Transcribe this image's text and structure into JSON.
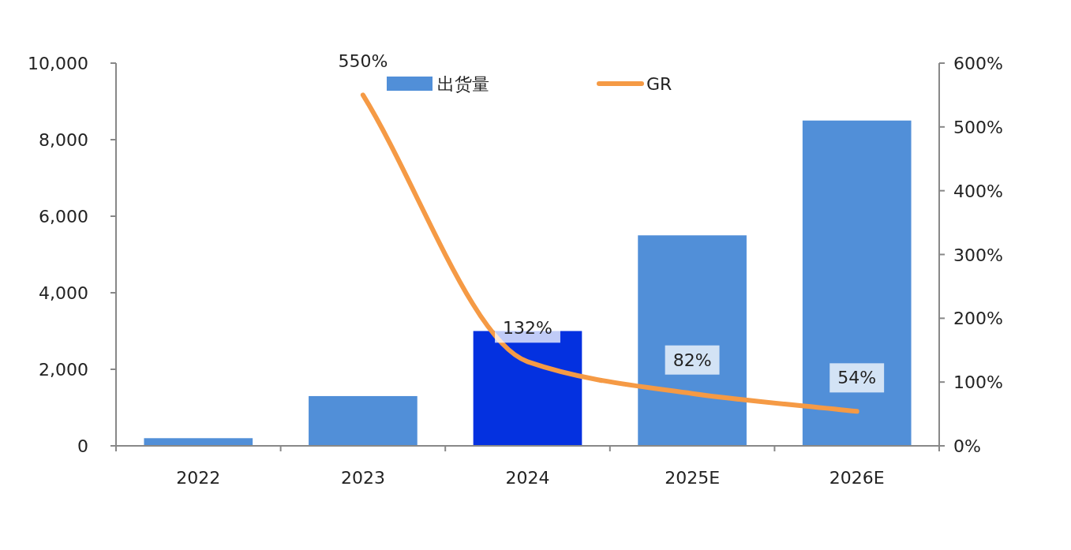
{
  "chart_data": {
    "type": "bar",
    "categories": [
      "2022",
      "2023",
      "2024",
      "2025E",
      "2026E"
    ],
    "series": [
      {
        "name": "出货量",
        "color": "#518fd8",
        "colors": [
          "#518fd8",
          "#518fd8",
          "#0431e0",
          "#518fd8",
          "#518fd8"
        ],
        "values": [
          200,
          1300,
          3000,
          5500,
          8500
        ]
      },
      {
        "name": "GR",
        "type": "line",
        "axis": "y2",
        "color": "#f59a45",
        "values": [
          null,
          550,
          132,
          82,
          54
        ],
        "value_labels": [
          null,
          "550%",
          "132%",
          "82%",
          "54%"
        ]
      }
    ],
    "ylim": [
      0,
      10000
    ],
    "yticks": [
      0,
      {
        "value": 2000,
        "label": "2,000"
      },
      {
        "value": 4000,
        "label": "4,000"
      },
      {
        "value": 6000,
        "label": "6,000"
      },
      {
        "value": 8000,
        "label": "8,000"
      },
      {
        "value": 10000,
        "label": "10,000"
      }
    ],
    "y2lim": [
      0,
      600
    ],
    "y2ticks": [
      {
        "value": 0,
        "label": "0%"
      },
      {
        "value": 100,
        "label": "100%"
      },
      {
        "value": 200,
        "label": "200%"
      },
      {
        "value": 300,
        "label": "300%"
      },
      {
        "value": 400,
        "label": "400%"
      },
      {
        "value": 500,
        "label": "500%"
      },
      {
        "value": 600,
        "label": "600%"
      }
    ],
    "legend": "top",
    "grid": false,
    "marker": "none",
    "line_style": "solid"
  }
}
